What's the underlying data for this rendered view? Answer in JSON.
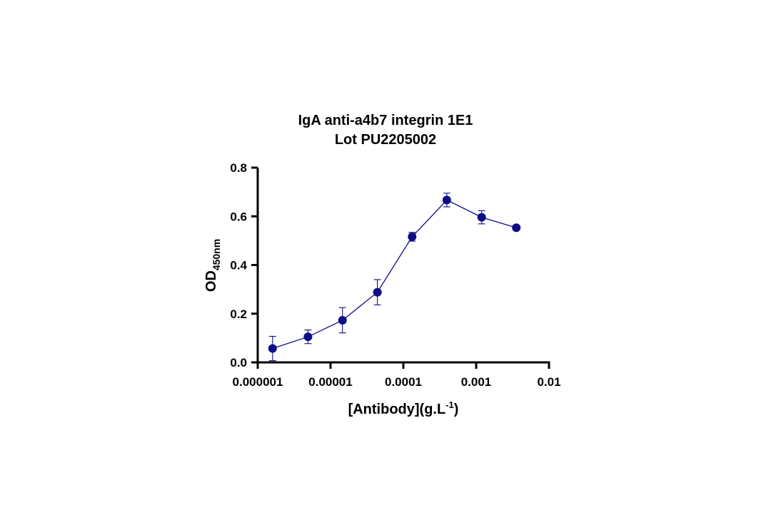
{
  "chart_data": {
    "type": "scatter",
    "title": "IgA anti-a4b7 integrin 1E1",
    "subtitle": "Lot PU2205002",
    "xlabel": {
      "main": "[Antibody](g.L",
      "superscript": "-1",
      "suffix": ")"
    },
    "ylabel": {
      "main": "OD",
      "subscript": "450nm"
    },
    "x_scale": "log",
    "xlim": [
      1e-06,
      0.01
    ],
    "ylim": [
      0.0,
      0.8
    ],
    "x_ticks": [
      1e-06,
      1e-05,
      0.0001,
      0.001,
      0.01
    ],
    "x_tick_labels": [
      "0.000001",
      "0.00001",
      "0.0001",
      "0.001",
      "0.01"
    ],
    "y_ticks": [
      0.0,
      0.2,
      0.4,
      0.6,
      0.8
    ],
    "y_tick_labels": [
      "0.0",
      "0.2",
      "0.4",
      "0.6",
      "0.8"
    ],
    "grid": false,
    "series": [
      {
        "x": [
          1.6e-06,
          4.9e-06,
          1.46e-05,
          4.4e-05,
          0.000132,
          0.000395,
          0.00119,
          0.00356
        ],
        "y": [
          0.057,
          0.105,
          0.173,
          0.288,
          0.516,
          0.667,
          0.596,
          0.553
        ],
        "error": [
          0.05,
          0.028,
          0.052,
          0.052,
          0.018,
          0.028,
          0.027,
          0.005
        ],
        "color": "#0d0d87",
        "connected": true
      }
    ]
  }
}
